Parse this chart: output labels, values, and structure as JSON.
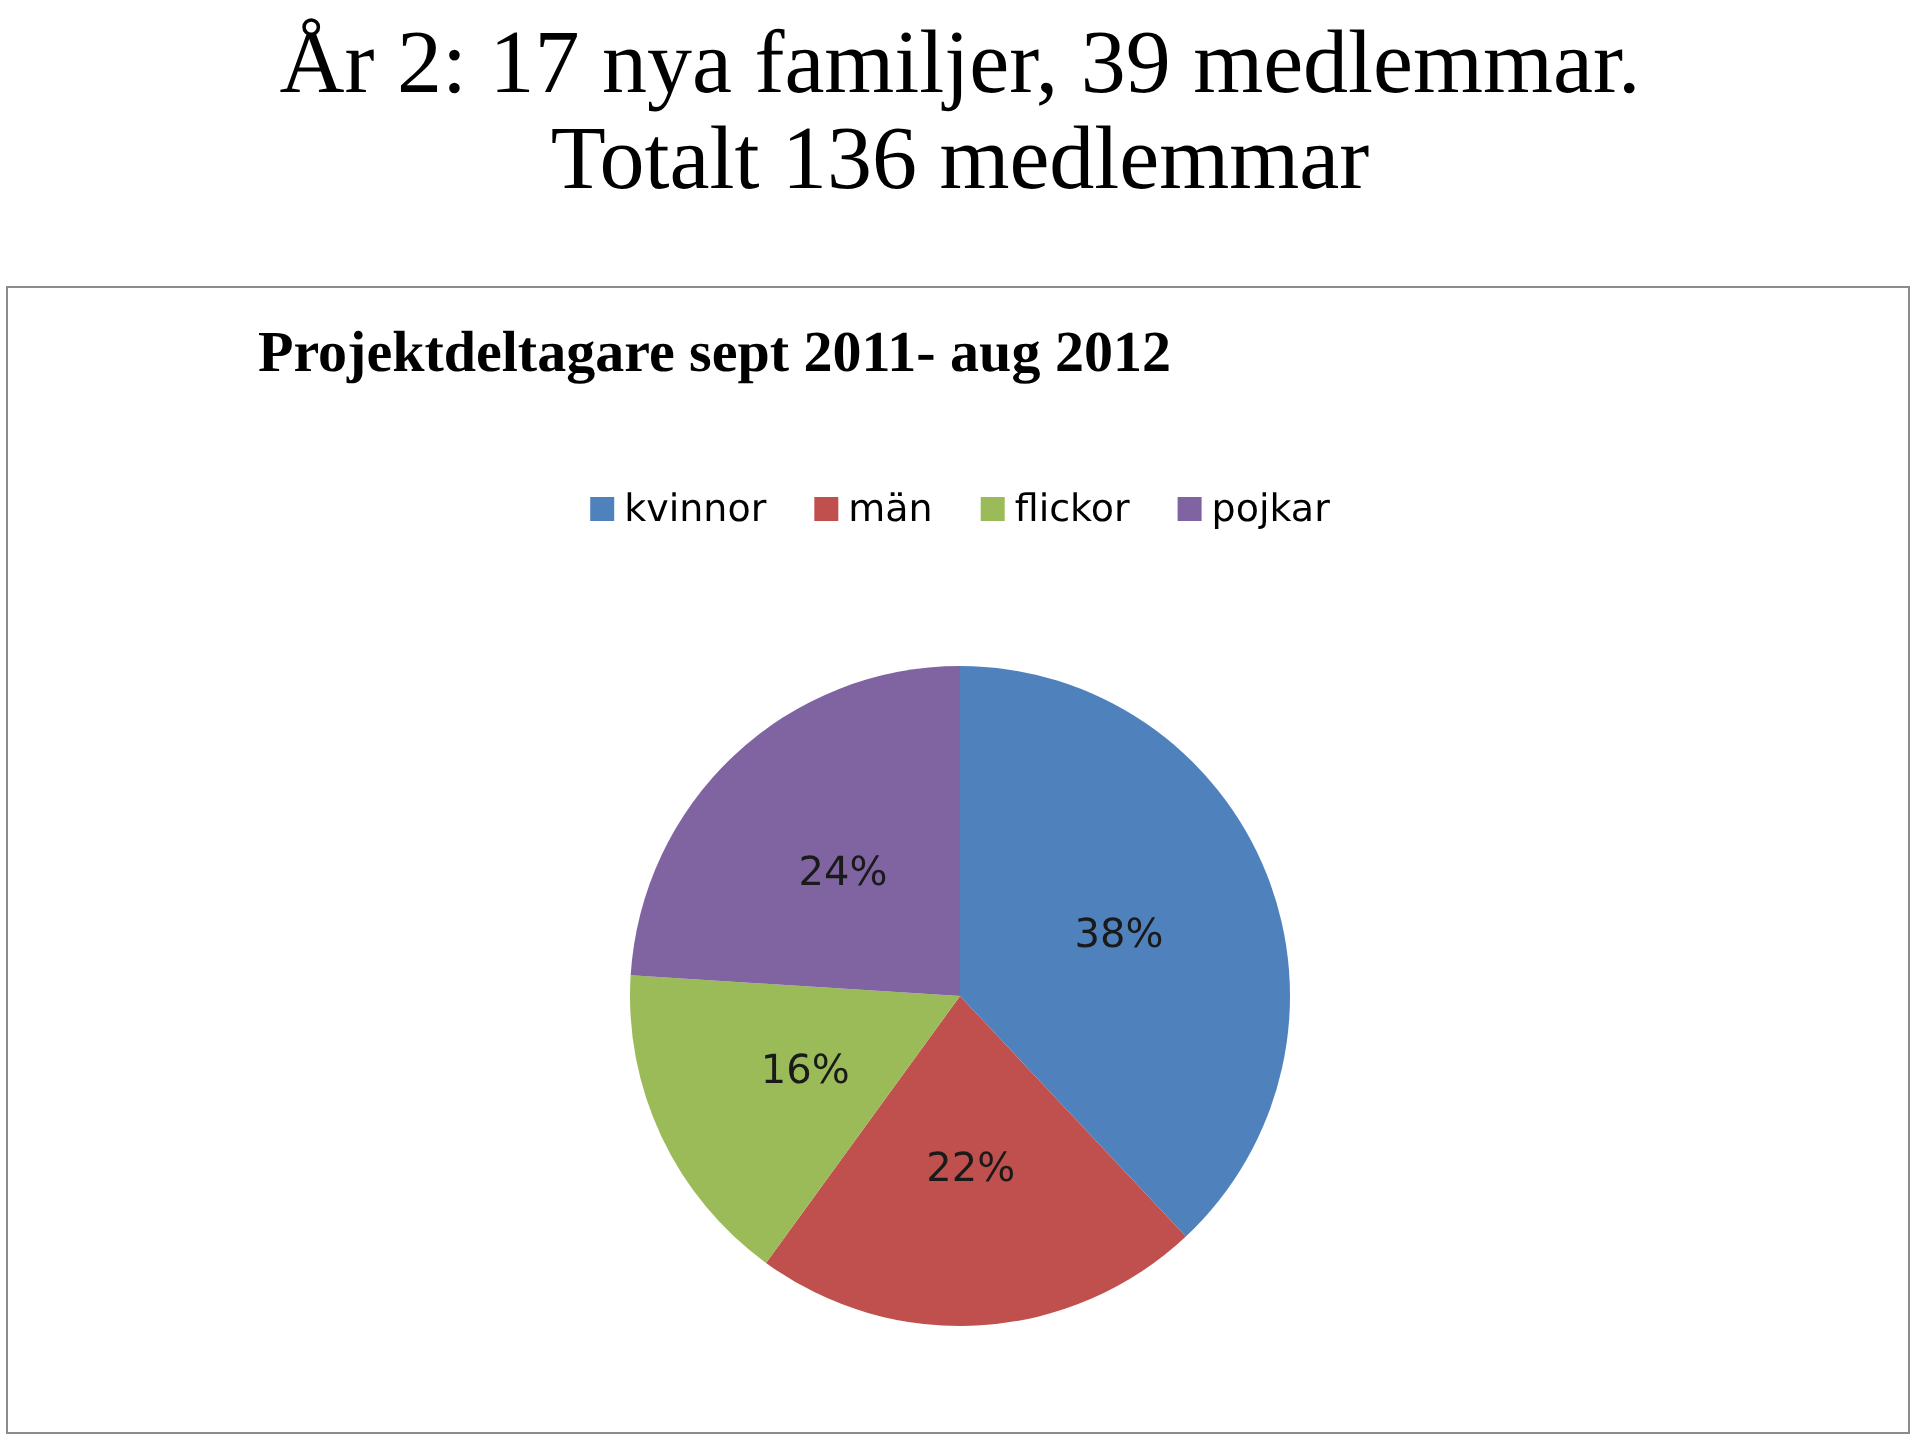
{
  "chart_data": {
    "type": "pie",
    "title": "År 2: 17 nya familjer, 39 medlemmar.\nTotalt 136 medlemmar",
    "subtitle": "Projektdeltagare sept 2011- aug 2012",
    "categories": [
      "kvinnor",
      "män",
      "flickor",
      "pojkar"
    ],
    "values": [
      38,
      22,
      16,
      24
    ],
    "value_labels": [
      "38%",
      "22%",
      "16%",
      "24%"
    ],
    "colors": [
      "#4f81bd",
      "#c0504d",
      "#9bbb59",
      "#8064a2"
    ],
    "legend": "top"
  }
}
